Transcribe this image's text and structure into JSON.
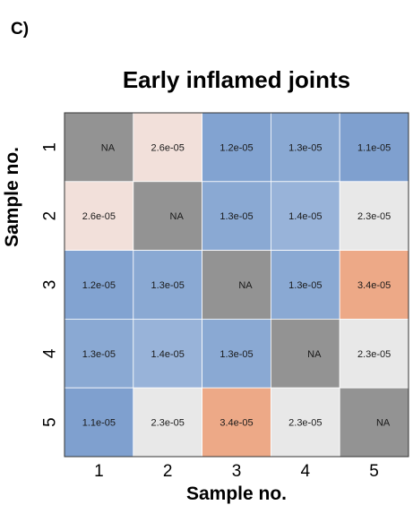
{
  "panel_label": "C)",
  "chart_data": {
    "type": "heatmap",
    "title": "Early inflamed joints",
    "xlabel": "Sample no.",
    "ylabel": "Sample no.",
    "x_categories": [
      "1",
      "2",
      "3",
      "4",
      "5"
    ],
    "y_categories": [
      "1",
      "2",
      "3",
      "4",
      "5"
    ],
    "cells": [
      [
        "NA",
        "2.6e-05",
        "1.2e-05",
        "1.3e-05",
        "1.1e-05"
      ],
      [
        "2.6e-05",
        "NA",
        "1.3e-05",
        "1.4e-05",
        "2.3e-05"
      ],
      [
        "1.2e-05",
        "1.3e-05",
        "NA",
        "1.3e-05",
        "3.4e-05"
      ],
      [
        "1.3e-05",
        "1.4e-05",
        "1.3e-05",
        "NA",
        "2.3e-05"
      ],
      [
        "1.1e-05",
        "2.3e-05",
        "3.4e-05",
        "2.3e-05",
        "NA"
      ]
    ],
    "na_color": "#939393",
    "color_scale": {
      "1.1e-05": "#7fa0cf",
      "1.2e-05": "#82a3d1",
      "1.3e-05": "#8aa9d3",
      "1.4e-05": "#98b3d9",
      "2.3e-05": "#e8e8e8",
      "2.6e-05": "#f2e0da",
      "3.4e-05": "#eda987"
    }
  }
}
